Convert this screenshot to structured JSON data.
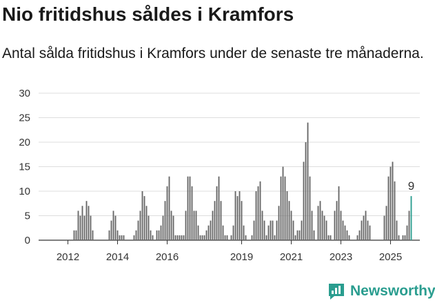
{
  "title": "Nio fritidshus såldes i Kramfors",
  "subtitle": "Antal sålda fritidshus i Kramfors under de senaste tre månaderna.",
  "brand": {
    "name": "Newsworthy",
    "icon": "bar-chart-logo-icon",
    "color": "#2a9d8f"
  },
  "chart_data": {
    "type": "bar",
    "x_start": "2011-01",
    "y_ticks": [
      0,
      5,
      10,
      15,
      20,
      25,
      30
    ],
    "ylim": [
      0,
      30
    ],
    "x_ticks": [
      {
        "label": "2012",
        "index": 13
      },
      {
        "label": "2014",
        "index": 37
      },
      {
        "label": "2016",
        "index": 61
      },
      {
        "label": "2019",
        "index": 97
      },
      {
        "label": "2021",
        "index": 121
      },
      {
        "label": "2023",
        "index": 145
      },
      {
        "label": "2025",
        "index": 169
      }
    ],
    "bar_color": "#666666",
    "highlight_color": "#2a9d8f",
    "highlight_label": "9",
    "grid": true,
    "values": [
      0,
      0,
      0,
      0,
      0,
      0,
      0,
      0,
      0,
      0,
      0,
      0,
      0,
      0,
      0,
      0,
      2,
      2,
      6,
      5,
      7,
      5,
      8,
      7,
      5,
      2,
      0,
      0,
      0,
      0,
      0,
      0,
      0,
      2,
      4,
      6,
      5,
      2,
      1,
      1,
      1,
      0,
      0,
      0,
      0,
      1,
      2,
      4,
      6,
      10,
      9,
      7,
      5,
      2,
      1,
      0,
      2,
      2,
      3,
      5,
      8,
      11,
      13,
      6,
      5,
      1,
      1,
      1,
      1,
      1,
      6,
      13,
      13,
      11,
      6,
      6,
      3,
      1,
      1,
      1,
      2,
      3,
      4,
      6,
      8,
      11,
      13,
      8,
      3,
      1,
      1,
      0,
      1,
      3,
      10,
      9,
      10,
      8,
      3,
      1,
      0,
      0,
      1,
      4,
      10,
      11,
      12,
      6,
      4,
      1,
      3,
      4,
      4,
      1,
      4,
      7,
      13,
      15,
      13,
      10,
      8,
      6,
      4,
      1,
      2,
      2,
      4,
      16,
      20,
      24,
      13,
      6,
      2,
      0,
      7,
      8,
      6,
      5,
      4,
      1,
      1,
      0,
      6,
      8,
      11,
      6,
      4,
      3,
      2,
      1,
      0,
      0,
      0,
      1,
      2,
      4,
      5,
      6,
      4,
      3,
      0,
      0,
      0,
      0,
      0,
      0,
      5,
      7,
      13,
      15,
      16,
      12,
      4,
      1,
      0,
      1,
      1,
      3,
      6,
      9
    ]
  }
}
